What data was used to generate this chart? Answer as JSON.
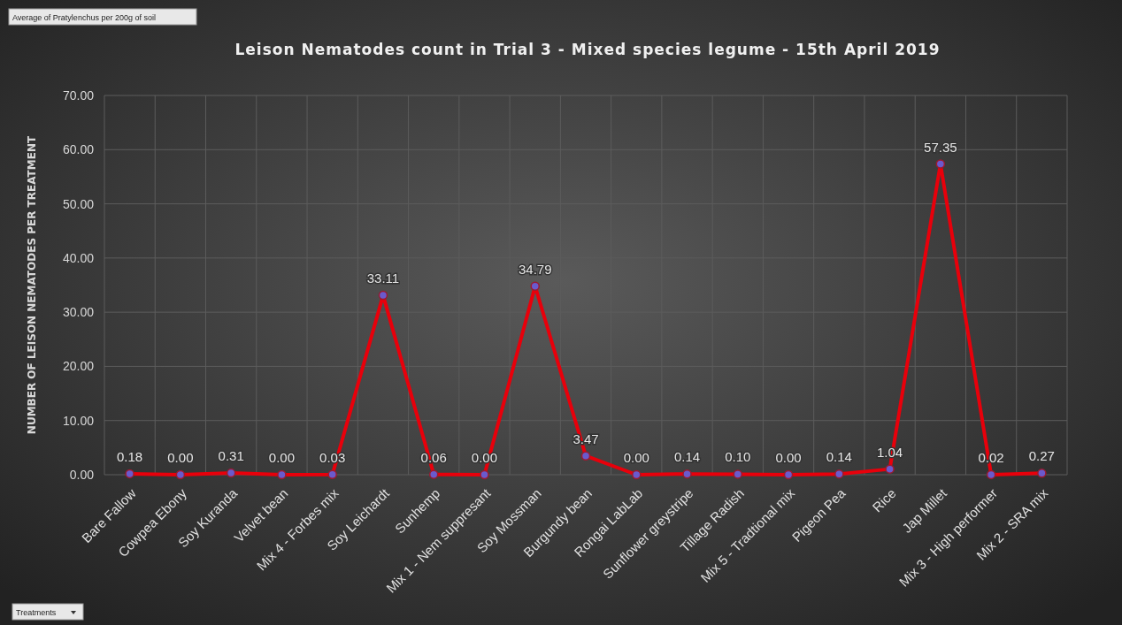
{
  "chart_data": {
    "type": "line",
    "title": "Leison Nematodes count in Trial 3 - Mixed species legume - 15th April 2019",
    "ylabel": "NUMBER OF LEISON NEMATODES PER TREATMENT",
    "annotations": [
      "Average of Pratylenchus per 200g of soil",
      "Treatments"
    ],
    "categories": [
      "Bare Fallow",
      "Cowpea Ebony",
      "Soy Kuranda",
      "Velvet bean",
      "Mix 4 - Forbes mix",
      "Soy Leichardt",
      "Sunhemp",
      "Mix 1 - Nem suppresant",
      "Soy Mossman",
      "Burgundy bean",
      "Rongai LabLab",
      "Sunflower greystripe",
      "Tillage Radish",
      "Mix 5 - Tradtional mix",
      "Pigeon Pea",
      "Rice",
      "Jap Millet",
      "Mix 3 - High performer",
      "Mix 2 - SRA mix"
    ],
    "series": [
      {
        "color": "#e8000b",
        "values": [
          0.18,
          0,
          0.31,
          0,
          0.03,
          33.11,
          0.06,
          0,
          34.79,
          3.47,
          0,
          0.14,
          0.1,
          0,
          0.14,
          1.04,
          57.35,
          0.02,
          0.27
        ],
        "value_labels": [
          "0.18",
          "0.00",
          "0.31",
          "0.00",
          "0.03",
          "33.11",
          "0.06",
          "0.00",
          "34.79",
          "3.47",
          "0.00",
          "0.14",
          "0.10",
          "0.00",
          "0.14",
          "1.04",
          "57.35",
          "0.02",
          "0.27"
        ]
      }
    ],
    "ylim": [
      0,
      70
    ],
    "yticks": [
      {
        "value": 0,
        "label": "0.00"
      },
      {
        "value": 10,
        "label": "10.00"
      },
      {
        "value": 20,
        "label": "20.00"
      },
      {
        "value": 30,
        "label": "30.00"
      },
      {
        "value": 40,
        "label": "40.00"
      },
      {
        "value": 50,
        "label": "50.00"
      },
      {
        "value": 60,
        "label": "60.00"
      },
      {
        "value": 70,
        "label": "70.00"
      }
    ],
    "grid": true,
    "marker": "circle",
    "line_style": "solid"
  }
}
